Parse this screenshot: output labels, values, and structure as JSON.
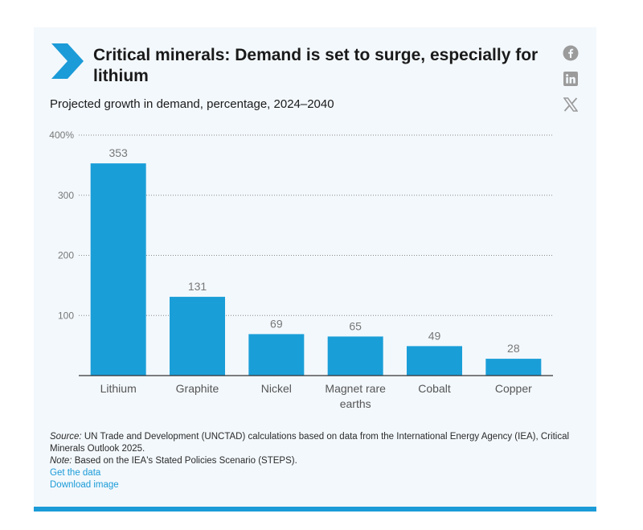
{
  "header": {
    "title": "Critical minerals: Demand is set to surge, especially for lithium",
    "subtitle": "Projected growth in demand, percentage, 2024–2040"
  },
  "share": {
    "icons": [
      "facebook-icon",
      "linkedin-icon",
      "x-icon"
    ]
  },
  "colors": {
    "bar": "#1a9ed8",
    "accent": "#1b9bd8",
    "background": "#f3f8fc"
  },
  "chart_data": {
    "type": "bar",
    "categories": [
      "Lithium",
      "Graphite",
      "Nickel",
      "Magnet rare earths",
      "Cobalt",
      "Copper"
    ],
    "category_lines": [
      [
        "Lithium"
      ],
      [
        "Graphite"
      ],
      [
        "Nickel"
      ],
      [
        "Magnet rare",
        "earths"
      ],
      [
        "Cobalt"
      ],
      [
        "Copper"
      ]
    ],
    "values": [
      353,
      131,
      69,
      65,
      49,
      28
    ],
    "data_labels": [
      "353",
      "131",
      "69",
      "65",
      "49",
      "28"
    ],
    "ylim": [
      0,
      400
    ],
    "yticks": [
      100,
      200,
      300,
      400
    ],
    "ytick_labels": [
      "100",
      "200",
      "300",
      "400%"
    ],
    "grid": true,
    "grid_style": "dotted"
  },
  "footer": {
    "source_label": "Source:",
    "source_text": "UN Trade and Development (UNCTAD) calculations based on data from the International Energy Agency (IEA), Critical Minerals Outlook 2025.",
    "note_label": "Note:",
    "note_text": "Based on the IEA's Stated Policies Scenario (STEPS).",
    "get_data_link": "Get the data",
    "download_link": "Download image"
  }
}
